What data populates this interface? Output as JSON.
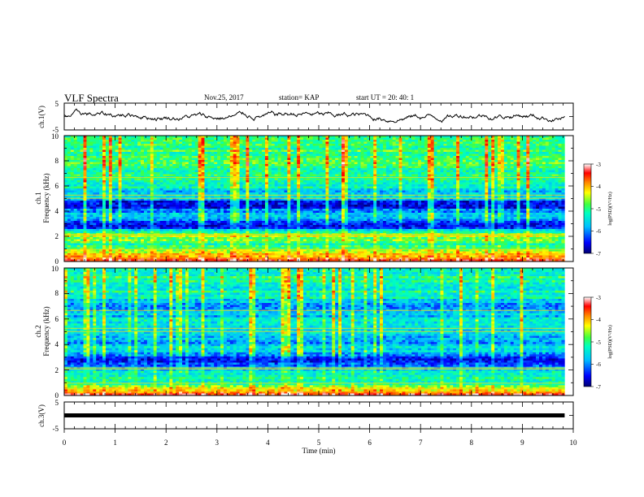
{
  "header": {
    "title": "VLF Spectra",
    "date": "Nov.25, 2017",
    "station": "station= KAP",
    "start": "start  UT =   20: 40: 1"
  },
  "chart_data": [
    {
      "type": "line",
      "panel": "ch1-waveform",
      "ylabel": "ch.1(V)",
      "ylim": [
        -5,
        5
      ],
      "ytick_labels": [
        "5",
        "-5"
      ],
      "xlim": [
        0,
        10
      ],
      "x_end": 9.83,
      "description_values": {
        "mean": 0.2,
        "amplitude": 1.3
      }
    },
    {
      "type": "heatmap",
      "panel": "ch1-spectrogram",
      "ylabel_line1": "ch.1",
      "ylabel_line2": "Frequency (kHz)",
      "ylim": [
        0,
        10
      ],
      "ytick_labels": [
        "0",
        "2",
        "4",
        "6",
        "8",
        "10"
      ],
      "xlim": [
        0,
        10
      ],
      "colorbar": {
        "label": "log(PSD)(V²/Hz)",
        "range": [
          -7,
          -3
        ],
        "tick_labels": [
          "-3",
          "-4",
          "-5",
          "-6",
          "-7"
        ]
      },
      "bands": [
        {
          "f": 0.1,
          "v": -3.4
        },
        {
          "f": 0.4,
          "v": -4.0
        },
        {
          "f": 0.8,
          "v": -4.6
        },
        {
          "f": 1.2,
          "v": -5.0
        },
        {
          "f": 1.6,
          "v": -5.0
        },
        {
          "f": 2.0,
          "v": -4.4
        },
        {
          "f": 2.4,
          "v": -5.4
        },
        {
          "f": 2.8,
          "v": -6.8
        },
        {
          "f": 3.2,
          "v": -6.2
        },
        {
          "f": 3.6,
          "v": -5.8
        },
        {
          "f": 4.0,
          "v": -6.0
        },
        {
          "f": 4.4,
          "v": -6.6
        },
        {
          "f": 4.8,
          "v": -6.3
        },
        {
          "f": 5.2,
          "v": -5.5
        },
        {
          "f": 5.6,
          "v": -5.6
        },
        {
          "f": 6.0,
          "v": -5.3
        },
        {
          "f": 6.4,
          "v": -5.4
        },
        {
          "f": 6.8,
          "v": -5.0
        },
        {
          "f": 7.2,
          "v": -5.2
        },
        {
          "f": 7.6,
          "v": -5.0
        },
        {
          "f": 8.0,
          "v": -4.8
        },
        {
          "f": 8.4,
          "v": -4.9
        },
        {
          "f": 8.8,
          "v": -4.9
        },
        {
          "f": 9.2,
          "v": -5.0
        },
        {
          "f": 9.6,
          "v": -5.0
        },
        {
          "f": 10.0,
          "v": -5.1
        }
      ]
    },
    {
      "type": "heatmap",
      "panel": "ch2-spectrogram",
      "ylabel_line1": "ch.2",
      "ylabel_line2": "Frequency (kHz)",
      "ylim": [
        0,
        10
      ],
      "ytick_labels": [
        "0",
        "2",
        "4",
        "6",
        "8",
        "10"
      ],
      "xlim": [
        0,
        10
      ],
      "colorbar": {
        "label": "log(PSD)(V²/Hz)",
        "range": [
          -7,
          -3
        ],
        "tick_labels": [
          "-3",
          "-4",
          "-5",
          "-6",
          "-7"
        ]
      },
      "bands": [
        {
          "f": 0.1,
          "v": -3.4
        },
        {
          "f": 0.4,
          "v": -4.2
        },
        {
          "f": 0.8,
          "v": -4.8
        },
        {
          "f": 1.2,
          "v": -5.2
        },
        {
          "f": 1.6,
          "v": -5.4
        },
        {
          "f": 2.0,
          "v": -5.6
        },
        {
          "f": 2.4,
          "v": -6.2
        },
        {
          "f": 2.8,
          "v": -6.6
        },
        {
          "f": 3.2,
          "v": -6.2
        },
        {
          "f": 3.6,
          "v": -5.4
        },
        {
          "f": 4.0,
          "v": -5.9
        },
        {
          "f": 4.4,
          "v": -5.7
        },
        {
          "f": 4.8,
          "v": -5.6
        },
        {
          "f": 5.2,
          "v": -5.3
        },
        {
          "f": 5.6,
          "v": -5.3
        },
        {
          "f": 6.0,
          "v": -5.5
        },
        {
          "f": 6.4,
          "v": -5.8
        },
        {
          "f": 6.8,
          "v": -5.9
        },
        {
          "f": 7.2,
          "v": -5.8
        },
        {
          "f": 7.6,
          "v": -5.4
        },
        {
          "f": 8.0,
          "v": -5.2
        },
        {
          "f": 8.4,
          "v": -5.3
        },
        {
          "f": 8.8,
          "v": -5.3
        },
        {
          "f": 9.2,
          "v": -5.1
        },
        {
          "f": 9.6,
          "v": -5.2
        },
        {
          "f": 10.0,
          "v": -5.1
        }
      ]
    },
    {
      "type": "line",
      "panel": "ch3-waveform",
      "ylabel": "ch.3(V)",
      "ylim": [
        -5,
        5
      ],
      "ytick_labels": [
        "5",
        "-5"
      ],
      "xlim": [
        0,
        10
      ],
      "x_end": 9.83,
      "level": 0.0,
      "xlabel": "Time  (min)",
      "xtick_labels": [
        "0",
        "1",
        "2",
        "3",
        "4",
        "5",
        "6",
        "7",
        "8",
        "9",
        "10"
      ]
    }
  ]
}
